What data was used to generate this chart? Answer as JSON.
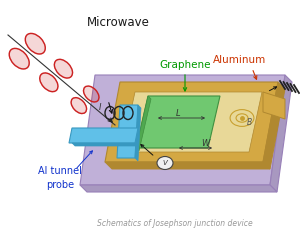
{
  "title": "Schematics of Josephson junction device",
  "title_fontsize": 5.5,
  "title_color": "#999999",
  "bg_color": "#ffffff",
  "microwave_label": "Microwave",
  "microwave_label_color": "#1a1a1a",
  "microwave_label_fontsize": 8.5,
  "graphene_label": "Graphene",
  "graphene_label_color": "#009900",
  "graphene_label_fontsize": 7.5,
  "aluminum_label": "Aluminum",
  "aluminum_label_color": "#cc3300",
  "aluminum_label_fontsize": 7.5,
  "al_tunnel_label": "Al tunnel\nprobe",
  "al_tunnel_label_color": "#1133cc",
  "al_tunnel_label_fontsize": 7.0,
  "platform_top_color": "#c0b0d8",
  "platform_side_color": "#a898c0",
  "frame_top_color": "#d4a843",
  "frame_side_color": "#b08830",
  "frame_inner_color": "#e8d898",
  "graphene_color": "#70c870",
  "graphene_edge_color": "#409040",
  "probe_top_color": "#60c0e8",
  "probe_side_color": "#3898c0",
  "wave_color": "#cc2222",
  "coil_color": "#222222",
  "volt_face_color": "#f0f0f0",
  "volt_edge_color": "#444444",
  "label_color": "#333333",
  "arrow_color": "#111111"
}
